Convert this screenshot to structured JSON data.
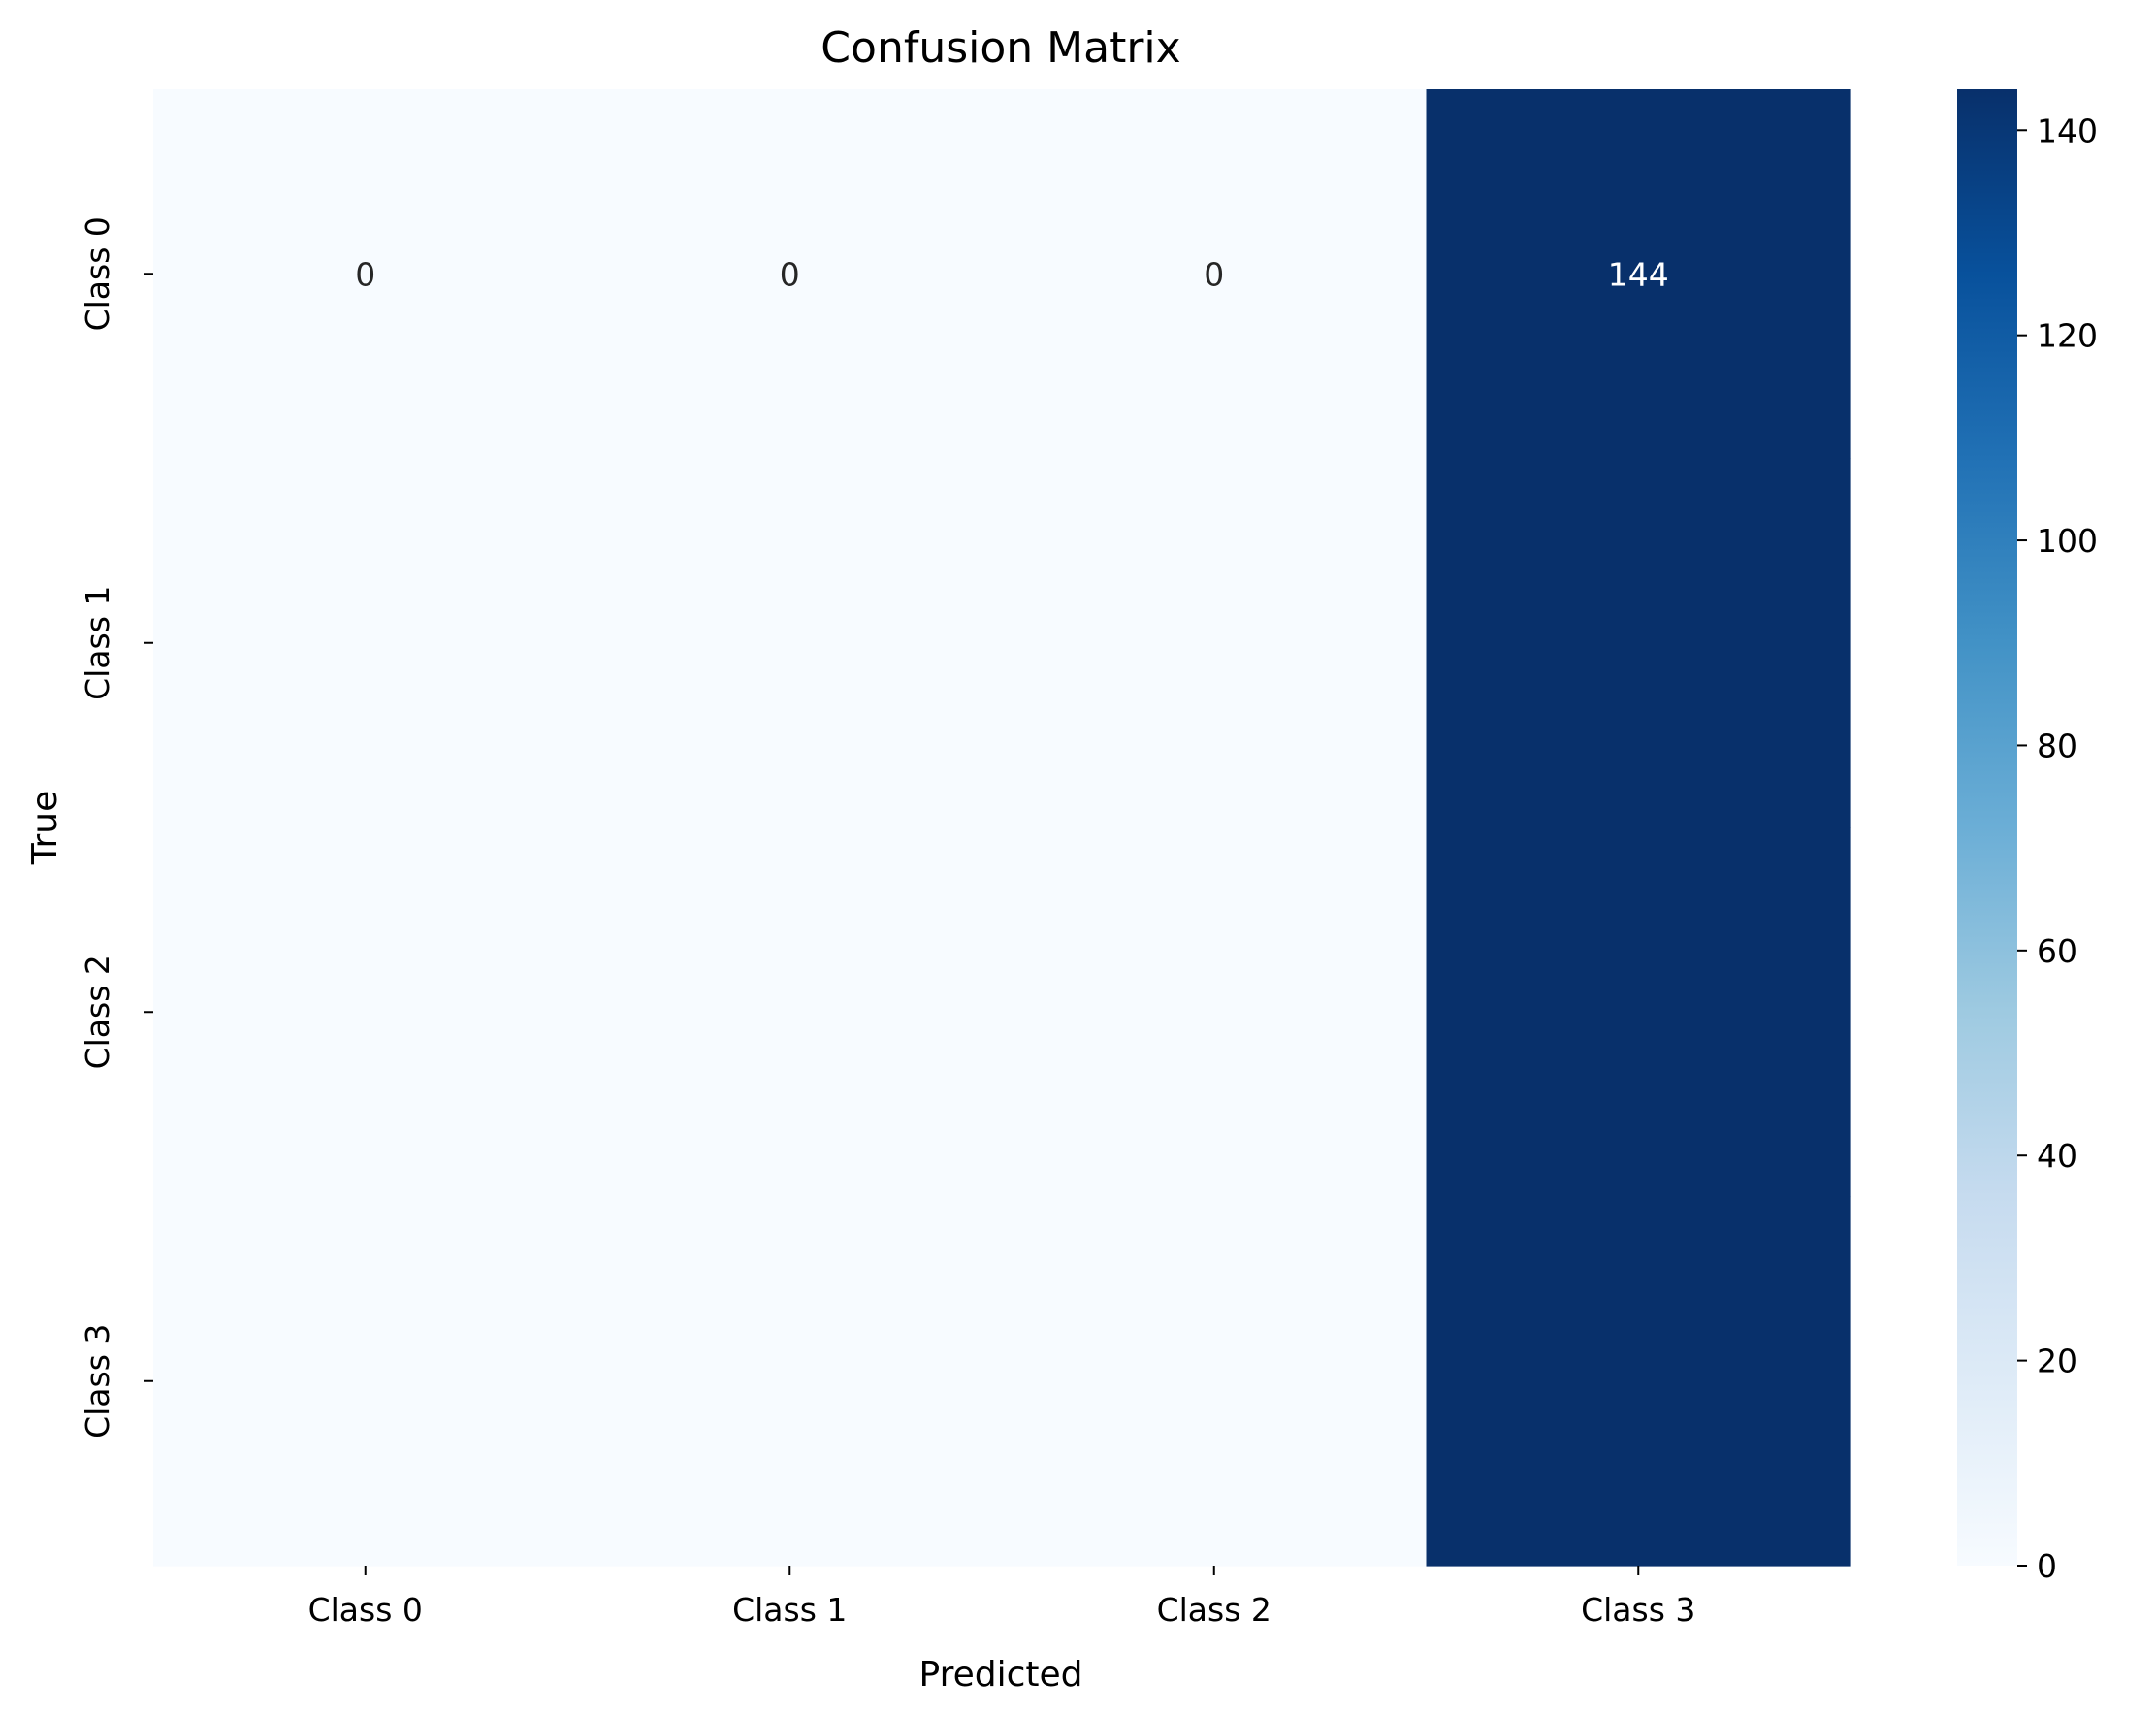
{
  "chart_data": {
    "type": "heatmap",
    "title": "Confusion Matrix",
    "xlabel": "Predicted",
    "ylabel": "True",
    "x_categories": [
      "Class 0",
      "Class 1",
      "Class 2",
      "Class 3"
    ],
    "y_categories": [
      "Class 0",
      "Class 1",
      "Class 2",
      "Class 3"
    ],
    "matrix": [
      [
        0,
        0,
        0,
        144
      ],
      [
        0,
        0,
        0,
        144
      ],
      [
        0,
        0,
        0,
        144
      ],
      [
        0,
        0,
        0,
        144
      ]
    ],
    "annotations": [
      [
        "0",
        "0",
        "0",
        "144"
      ],
      [
        "",
        "",
        "",
        ""
      ],
      [
        "",
        "",
        "",
        ""
      ],
      [
        "",
        "",
        "",
        ""
      ]
    ],
    "colormap": "Blues",
    "colormap_low": "#f7fbff",
    "colormap_high": "#08306b",
    "annotation_dark_color": "#262626",
    "annotation_light_color": "#ffffff",
    "colorbar": {
      "range": [
        0,
        144
      ],
      "ticks": [
        0,
        20,
        40,
        60,
        80,
        100,
        120,
        140
      ],
      "tick_labels": [
        "0",
        "20",
        "40",
        "60",
        "80",
        "100",
        "120",
        "140"
      ]
    }
  }
}
